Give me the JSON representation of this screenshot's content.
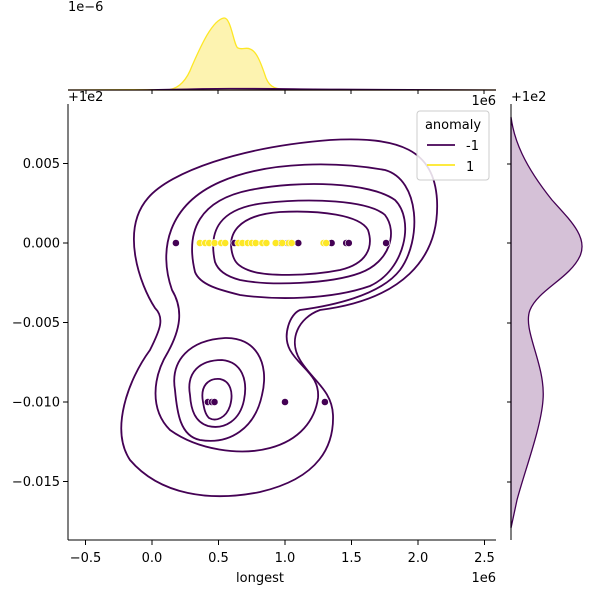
{
  "chart_data": {
    "type": "scatter",
    "subtype": "jointplot-kde",
    "xlabel": "longest",
    "ylabel": "",
    "x_offset_label": "1e6",
    "y_offset_label": "+1e2",
    "top_marginal_offset_label": "1e−6",
    "top_marginal_offset_label2": "1e6",
    "right_marginal_offset_label": "+1e2",
    "xlim": [
      -0.62,
      2.6
    ],
    "ylim": [
      -0.0187,
      0.0086
    ],
    "x_ticks": [
      -0.5,
      0.0,
      0.5,
      1.0,
      1.5,
      2.0,
      2.5
    ],
    "x_tick_labels": [
      "−0.5",
      "0.0",
      "0.5",
      "1.0",
      "1.5",
      "2.0",
      "2.5"
    ],
    "y_ticks": [
      0.005,
      0.0,
      -0.005,
      -0.01,
      -0.015
    ],
    "y_tick_labels": [
      "0.005",
      "0.000",
      "−0.005",
      "−0.010",
      "−0.015"
    ],
    "legend": {
      "title": "anomaly",
      "position": "top-right",
      "entries": [
        {
          "label": "-1",
          "color": "#440154"
        },
        {
          "label": "1",
          "color": "#fde725"
        }
      ]
    },
    "colors": {
      "anomaly_neg": "#440154",
      "anomaly_pos": "#fde725",
      "marginal_fill_pos": "#fdf3b0",
      "marginal_fill_neg": "#d3bed5"
    },
    "series": [
      {
        "name": "-1",
        "points": [
          {
            "x": 0.18,
            "y": 0.0
          },
          {
            "x": 0.62,
            "y": 0.0
          },
          {
            "x": 0.97,
            "y": 0.0
          },
          {
            "x": 1.02,
            "y": 0.0
          },
          {
            "x": 1.1,
            "y": 0.0
          },
          {
            "x": 1.35,
            "y": 0.0
          },
          {
            "x": 1.46,
            "y": 0.0
          },
          {
            "x": 1.48,
            "y": 0.0
          },
          {
            "x": 1.76,
            "y": 0.0
          },
          {
            "x": 0.42,
            "y": -0.01
          },
          {
            "x": 0.45,
            "y": -0.01
          },
          {
            "x": 0.47,
            "y": -0.01
          },
          {
            "x": 1.0,
            "y": -0.01
          },
          {
            "x": 1.3,
            "y": -0.01
          }
        ]
      },
      {
        "name": "1",
        "points": [
          {
            "x": 0.36,
            "y": 0.0
          },
          {
            "x": 0.4,
            "y": 0.0
          },
          {
            "x": 0.43,
            "y": 0.0
          },
          {
            "x": 0.47,
            "y": 0.0
          },
          {
            "x": 0.52,
            "y": 0.0
          },
          {
            "x": 0.55,
            "y": 0.0
          },
          {
            "x": 0.65,
            "y": 0.0
          },
          {
            "x": 0.68,
            "y": 0.0
          },
          {
            "x": 0.72,
            "y": 0.0
          },
          {
            "x": 0.75,
            "y": 0.0
          },
          {
            "x": 0.78,
            "y": 0.0
          },
          {
            "x": 0.83,
            "y": 0.0
          },
          {
            "x": 0.86,
            "y": 0.0
          },
          {
            "x": 0.93,
            "y": 0.0
          },
          {
            "x": 0.98,
            "y": 0.0
          },
          {
            "x": 1.03,
            "y": 0.0
          },
          {
            "x": 1.05,
            "y": 0.0
          },
          {
            "x": 1.29,
            "y": 0.0
          },
          {
            "x": 1.31,
            "y": 0.0
          }
        ]
      }
    ]
  }
}
